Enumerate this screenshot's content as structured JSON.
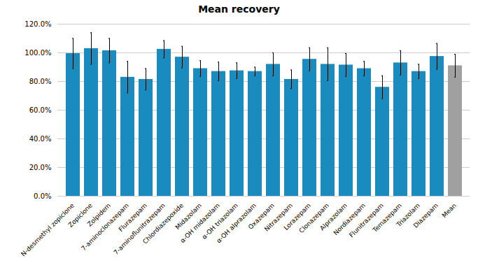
{
  "chart_data": {
    "type": "bar",
    "title": "Mean recovery",
    "categories": [
      "N-desmethyl zopiclone",
      "Zopiclone",
      "Zolpidem",
      "7-aminoclonazepam",
      "Flurazepam",
      "7-aminoflunitrazepam",
      "Chlordiazepoxide",
      "Midazolam",
      "α-OH midazolam",
      "α-OH triazolam",
      "α-OH alprazolam",
      "Oxazepam",
      "Nitrazepam",
      "Lorazepam",
      "Clonazepam",
      "Alprazolam",
      "Nordiazepam",
      "Flunitrazepam",
      "Temazepam",
      "Triazolam",
      "Diazepam",
      "Mean"
    ],
    "values": [
      99.5,
      103.0,
      101.5,
      83.0,
      81.5,
      102.5,
      97.0,
      89.0,
      87.0,
      87.5,
      87.0,
      92.0,
      81.5,
      95.5,
      92.0,
      91.5,
      89.0,
      76.0,
      93.0,
      87.0,
      97.5,
      91.0
    ],
    "errors": [
      10.5,
      11.0,
      8.5,
      11.0,
      7.5,
      6.0,
      7.5,
      5.5,
      6.5,
      5.5,
      3.0,
      8.0,
      6.5,
      8.0,
      11.5,
      8.0,
      5.0,
      8.0,
      8.5,
      5.0,
      9.0,
      8.0
    ],
    "colors": [
      "#1a8bbf",
      "#1a8bbf",
      "#1a8bbf",
      "#1a8bbf",
      "#1a8bbf",
      "#1a8bbf",
      "#1a8bbf",
      "#1a8bbf",
      "#1a8bbf",
      "#1a8bbf",
      "#1a8bbf",
      "#1a8bbf",
      "#1a8bbf",
      "#1a8bbf",
      "#1a8bbf",
      "#1a8bbf",
      "#1a8bbf",
      "#1a8bbf",
      "#1a8bbf",
      "#1a8bbf",
      "#1a8bbf",
      "#a0a0a0"
    ],
    "ylim": [
      0,
      120
    ],
    "yticks": [
      {
        "value": 0,
        "label": "0.0%"
      },
      {
        "value": 20,
        "label": "20.0%"
      },
      {
        "value": 40,
        "label": "40.0%"
      },
      {
        "value": 60,
        "label": "60.0%"
      },
      {
        "value": 80,
        "label": "80.0%"
      },
      {
        "value": 100,
        "label": "100.0%"
      },
      {
        "value": 120,
        "label": "120.0%"
      }
    ],
    "grid": true
  }
}
